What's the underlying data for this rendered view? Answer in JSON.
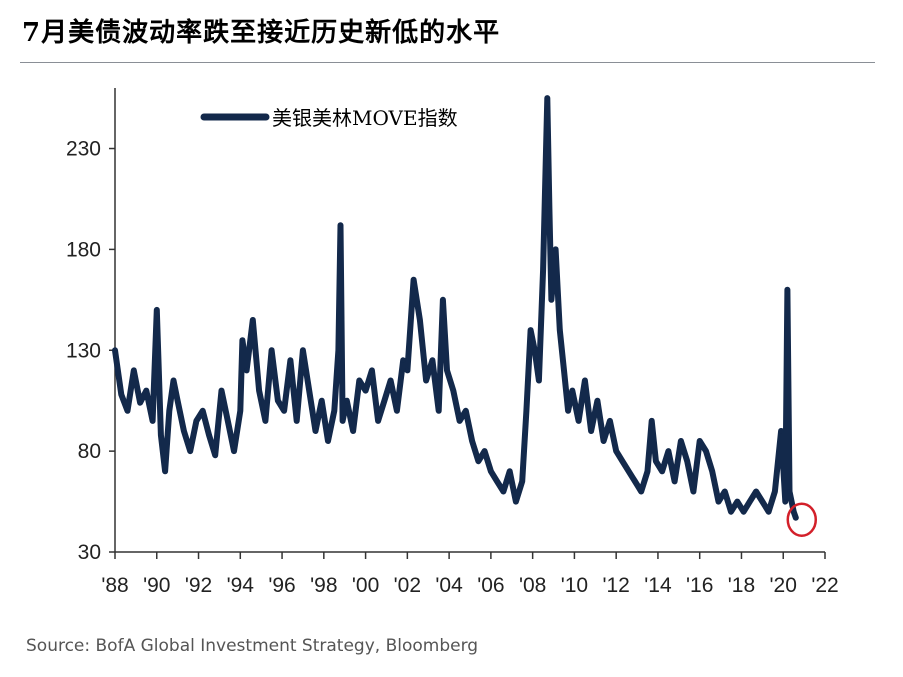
{
  "title": "7月美债波动率跌至接近历史新低的水平",
  "source": "Source: BofA Global Investment Strategy, Bloomberg",
  "colors": {
    "series": "#13294b",
    "axis": "#333333",
    "highlight": "#d3202a"
  },
  "chart_data": {
    "type": "line",
    "title": "7月美债波动率跌至接近历史新低的水平",
    "xlabel": "",
    "ylabel": "",
    "xlim": [
      1988,
      2022
    ],
    "ylim": [
      30,
      260
    ],
    "x_ticks": [
      1988,
      1990,
      1992,
      1994,
      1996,
      1998,
      2000,
      2002,
      2004,
      2006,
      2008,
      2010,
      2012,
      2014,
      2016,
      2018,
      2020,
      2022
    ],
    "x_tick_labels": [
      "'88",
      "'90",
      "'92",
      "'94",
      "'96",
      "'98",
      "'00",
      "'02",
      "'04",
      "'06",
      "'08",
      "'10",
      "'12",
      "'14",
      "'16",
      "'18",
      "'20",
      "'22"
    ],
    "y_ticks": [
      30,
      80,
      130,
      180,
      230
    ],
    "legend": "top-left",
    "highlight": {
      "x": 2020.6,
      "y": 47,
      "label": ""
    },
    "series": [
      {
        "name": "美银美林MOVE指数",
        "x": [
          1988.0,
          1988.3,
          1988.6,
          1988.9,
          1989.2,
          1989.5,
          1989.8,
          1990.0,
          1990.2,
          1990.4,
          1990.6,
          1990.8,
          1991.0,
          1991.3,
          1991.6,
          1991.9,
          1992.2,
          1992.5,
          1992.8,
          1993.1,
          1993.4,
          1993.7,
          1994.0,
          1994.1,
          1994.3,
          1994.6,
          1994.9,
          1995.2,
          1995.5,
          1995.8,
          1996.1,
          1996.4,
          1996.7,
          1997.0,
          1997.3,
          1997.6,
          1997.9,
          1998.2,
          1998.5,
          1998.7,
          1998.8,
          1998.9,
          1999.1,
          1999.4,
          1999.7,
          2000.0,
          2000.3,
          2000.6,
          2000.9,
          2001.2,
          2001.5,
          2001.8,
          2002.0,
          2002.3,
          2002.6,
          2002.9,
          2003.2,
          2003.5,
          2003.7,
          2003.9,
          2004.2,
          2004.5,
          2004.8,
          2005.1,
          2005.4,
          2005.7,
          2006.0,
          2006.3,
          2006.6,
          2006.9,
          2007.2,
          2007.5,
          2007.7,
          2007.9,
          2008.1,
          2008.3,
          2008.5,
          2008.7,
          2008.8,
          2008.9,
          2009.1,
          2009.3,
          2009.5,
          2009.7,
          2009.9,
          2010.2,
          2010.5,
          2010.8,
          2011.1,
          2011.4,
          2011.7,
          2012.0,
          2012.3,
          2012.6,
          2012.9,
          2013.2,
          2013.5,
          2013.7,
          2013.9,
          2014.2,
          2014.5,
          2014.8,
          2015.1,
          2015.4,
          2015.7,
          2016.0,
          2016.3,
          2016.6,
          2016.9,
          2017.2,
          2017.5,
          2017.8,
          2018.1,
          2018.4,
          2018.7,
          2019.0,
          2019.3,
          2019.6,
          2019.9,
          2020.1,
          2020.2,
          2020.3,
          2020.4,
          2020.5,
          2020.6
        ],
        "values": [
          130,
          108,
          100,
          120,
          104,
          110,
          95,
          150,
          88,
          70,
          100,
          115,
          105,
          90,
          80,
          95,
          100,
          88,
          78,
          110,
          95,
          80,
          100,
          135,
          120,
          145,
          110,
          95,
          130,
          105,
          100,
          125,
          95,
          130,
          110,
          90,
          105,
          85,
          100,
          130,
          192,
          95,
          105,
          90,
          115,
          110,
          120,
          95,
          105,
          115,
          100,
          125,
          120,
          165,
          145,
          115,
          125,
          100,
          155,
          120,
          110,
          95,
          100,
          85,
          75,
          80,
          70,
          65,
          60,
          70,
          55,
          65,
          100,
          140,
          130,
          115,
          170,
          255,
          200,
          155,
          180,
          140,
          120,
          100,
          110,
          95,
          115,
          90,
          105,
          85,
          95,
          80,
          75,
          70,
          65,
          60,
          70,
          95,
          75,
          70,
          80,
          65,
          85,
          75,
          60,
          85,
          80,
          70,
          55,
          60,
          50,
          55,
          50,
          55,
          60,
          55,
          50,
          60,
          90,
          55,
          160,
          60,
          55,
          50,
          47
        ]
      }
    ]
  }
}
